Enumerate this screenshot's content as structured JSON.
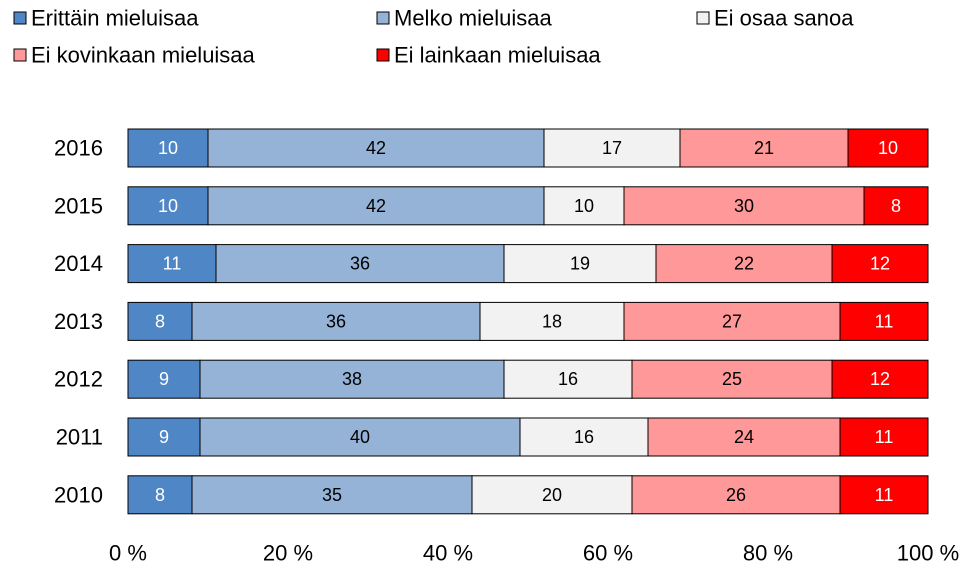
{
  "chart_data": {
    "type": "stacked_barh",
    "categories": [
      "2016",
      "2015",
      "2014",
      "2013",
      "2012",
      "2011",
      "2010"
    ],
    "series": [
      {
        "name": "Erittäin mieluisaa",
        "color": "#4f86c6",
        "label_color": "#ffffff",
        "values": [
          10,
          10,
          11,
          8,
          9,
          9,
          8
        ]
      },
      {
        "name": "Melko mieluisaa",
        "color": "#95b3d7",
        "label_color": "#000000",
        "values": [
          42,
          42,
          36,
          36,
          38,
          40,
          35
        ]
      },
      {
        "name": "Ei osaa sanoa",
        "color": "#f2f2f2",
        "label_color": "#000000",
        "values": [
          17,
          10,
          19,
          18,
          16,
          16,
          20
        ]
      },
      {
        "name": "Ei kovinkaan mieluisaa",
        "color": "#ff9999",
        "label_color": "#000000",
        "values": [
          21,
          30,
          22,
          27,
          25,
          24,
          26
        ]
      },
      {
        "name": "Ei lainkaan mieluisaa",
        "color": "#ff0000",
        "label_color": "#ffffff",
        "values": [
          10,
          8,
          12,
          11,
          12,
          11,
          11
        ]
      }
    ],
    "xlim": [
      0,
      100
    ],
    "xticks": [
      {
        "value": 0,
        "label": "0 %"
      },
      {
        "value": 20,
        "label": "20 %"
      },
      {
        "value": 40,
        "label": "40 %"
      },
      {
        "value": 60,
        "label": "60 %"
      },
      {
        "value": 80,
        "label": "80 %"
      },
      {
        "value": 100,
        "label": "100 %"
      }
    ],
    "legend": "top",
    "grid": false
  }
}
